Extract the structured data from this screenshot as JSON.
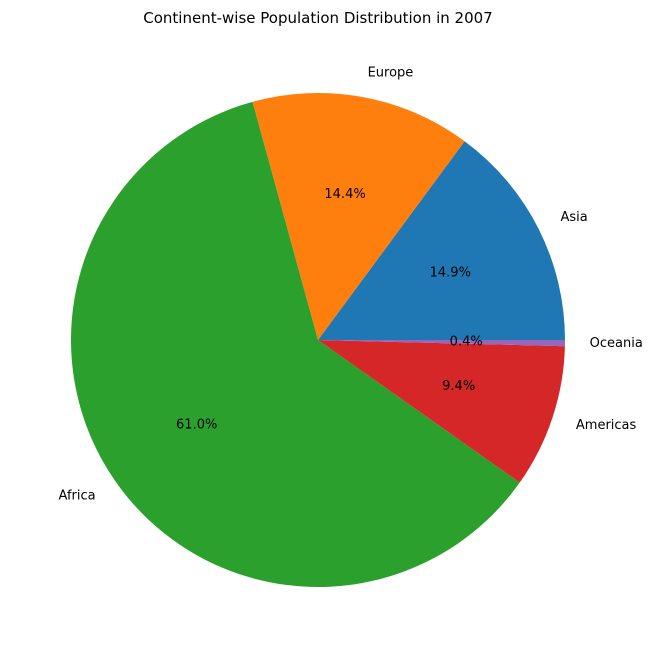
{
  "chart_data": {
    "type": "pie",
    "title": "Continent-wise Population Distribution in 2007",
    "labels": [
      "Asia",
      "Europe",
      "Africa",
      "Americas",
      "Oceania"
    ],
    "values": [
      14.9,
      14.4,
      61.0,
      9.4,
      0.4
    ],
    "value_labels": [
      "14.9%",
      "14.4%",
      "61.0%",
      "9.4%",
      "0.4%"
    ],
    "colors": [
      "#1f77b4",
      "#ff7f0e",
      "#2ca02c",
      "#d62728",
      "#9467bd"
    ],
    "start_angle_deg": 0,
    "direction": "counterclockwise"
  }
}
